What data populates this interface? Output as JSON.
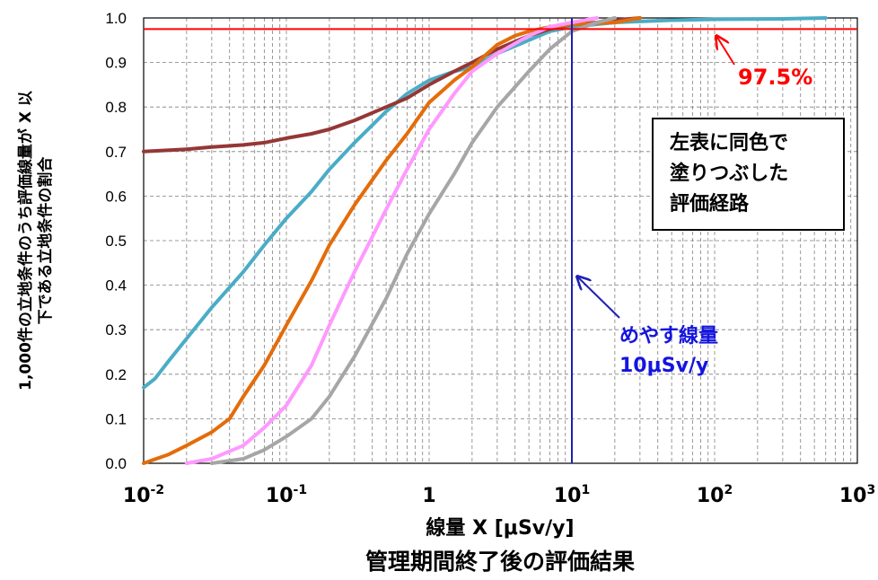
{
  "chart_data": {
    "type": "line",
    "xscale": "log",
    "xlim": [
      0.01,
      1000
    ],
    "ylim": [
      0,
      1
    ],
    "grid": true,
    "ylabel_lines": [
      "1,000件の立地条件のうち評価線量が X 以",
      "下である立地条件の割合"
    ],
    "xlabel": "線量 X [μSv/y]",
    "subtitle": "管理期間終了後の評価結果",
    "x_ticks": [
      {
        "base": "10",
        "exp": "-2"
      },
      {
        "base": "10",
        "exp": "-1"
      },
      {
        "base": "1",
        "exp": ""
      },
      {
        "base": "10",
        "exp": "1"
      },
      {
        "base": "10",
        "exp": "2"
      },
      {
        "base": "10",
        "exp": "3"
      }
    ],
    "y_ticks": [
      "0.0",
      "0.1",
      "0.2",
      "0.3",
      "0.4",
      "0.5",
      "0.6",
      "0.7",
      "0.8",
      "0.9",
      "1.0"
    ],
    "reference_lines": [
      {
        "orientation": "horizontal",
        "value": 0.975,
        "color": "#ff0000",
        "label": "97.5%"
      },
      {
        "orientation": "vertical",
        "value": 10,
        "color": "#1f1fb4",
        "label_lines": [
          "めやす線量",
          "10μSv/y"
        ]
      }
    ],
    "note_box": [
      "左表に同色で",
      "塗りつぶした",
      "評価経路"
    ],
    "series": [
      {
        "color": "#4bacc6",
        "points": [
          [
            0.01,
            0.17
          ],
          [
            0.012,
            0.19
          ],
          [
            0.015,
            0.23
          ],
          [
            0.02,
            0.28
          ],
          [
            0.03,
            0.35
          ],
          [
            0.05,
            0.43
          ],
          [
            0.07,
            0.49
          ],
          [
            0.1,
            0.55
          ],
          [
            0.15,
            0.61
          ],
          [
            0.2,
            0.66
          ],
          [
            0.3,
            0.72
          ],
          [
            0.5,
            0.79
          ],
          [
            0.7,
            0.83
          ],
          [
            1,
            0.86
          ],
          [
            1.5,
            0.88
          ],
          [
            2,
            0.89
          ],
          [
            3,
            0.92
          ],
          [
            5,
            0.95
          ],
          [
            7,
            0.97
          ],
          [
            10,
            0.98
          ],
          [
            20,
            0.99
          ],
          [
            50,
            0.995
          ],
          [
            100,
            0.997
          ],
          [
            300,
            0.998
          ],
          [
            600,
            1.0
          ]
        ]
      },
      {
        "color": "#953735",
        "points": [
          [
            0.01,
            0.7
          ],
          [
            0.02,
            0.705
          ],
          [
            0.03,
            0.71
          ],
          [
            0.05,
            0.715
          ],
          [
            0.07,
            0.72
          ],
          [
            0.1,
            0.73
          ],
          [
            0.15,
            0.74
          ],
          [
            0.2,
            0.75
          ],
          [
            0.3,
            0.77
          ],
          [
            0.5,
            0.8
          ],
          [
            0.7,
            0.82
          ],
          [
            1,
            0.85
          ],
          [
            1.5,
            0.88
          ],
          [
            2,
            0.9
          ],
          [
            3,
            0.93
          ],
          [
            5,
            0.96
          ],
          [
            7,
            0.975
          ],
          [
            10,
            0.985
          ],
          [
            15,
            0.99
          ],
          [
            20,
            0.995
          ],
          [
            30,
            1.0
          ]
        ]
      },
      {
        "color": "#e46c0a",
        "points": [
          [
            0.01,
            0.0
          ],
          [
            0.015,
            0.02
          ],
          [
            0.02,
            0.04
          ],
          [
            0.03,
            0.07
          ],
          [
            0.04,
            0.1
          ],
          [
            0.05,
            0.15
          ],
          [
            0.07,
            0.22
          ],
          [
            0.1,
            0.31
          ],
          [
            0.15,
            0.41
          ],
          [
            0.2,
            0.49
          ],
          [
            0.3,
            0.58
          ],
          [
            0.5,
            0.68
          ],
          [
            0.7,
            0.74
          ],
          [
            1,
            0.81
          ],
          [
            1.5,
            0.86
          ],
          [
            2,
            0.89
          ],
          [
            3,
            0.94
          ],
          [
            4,
            0.96
          ],
          [
            5,
            0.97
          ],
          [
            7,
            0.98
          ],
          [
            10,
            0.985
          ],
          [
            20,
            0.99
          ],
          [
            30,
            1.0
          ]
        ]
      },
      {
        "color": "#ff99ff",
        "points": [
          [
            0.02,
            0.0
          ],
          [
            0.03,
            0.01
          ],
          [
            0.05,
            0.04
          ],
          [
            0.07,
            0.08
          ],
          [
            0.1,
            0.13
          ],
          [
            0.15,
            0.22
          ],
          [
            0.2,
            0.31
          ],
          [
            0.3,
            0.43
          ],
          [
            0.5,
            0.57
          ],
          [
            0.7,
            0.66
          ],
          [
            1,
            0.75
          ],
          [
            1.5,
            0.83
          ],
          [
            2,
            0.88
          ],
          [
            3,
            0.92
          ],
          [
            5,
            0.96
          ],
          [
            7,
            0.98
          ],
          [
            10,
            0.99
          ],
          [
            15,
            1.0
          ]
        ]
      },
      {
        "color": "#a6a6a6",
        "points": [
          [
            0.03,
            0.0
          ],
          [
            0.05,
            0.01
          ],
          [
            0.07,
            0.03
          ],
          [
            0.1,
            0.06
          ],
          [
            0.15,
            0.1
          ],
          [
            0.2,
            0.15
          ],
          [
            0.3,
            0.24
          ],
          [
            0.5,
            0.37
          ],
          [
            0.7,
            0.47
          ],
          [
            1,
            0.56
          ],
          [
            1.5,
            0.65
          ],
          [
            2,
            0.72
          ],
          [
            3,
            0.8
          ],
          [
            5,
            0.88
          ],
          [
            7,
            0.93
          ],
          [
            10,
            0.97
          ],
          [
            15,
            0.99
          ],
          [
            20,
            1.0
          ]
        ]
      }
    ]
  }
}
